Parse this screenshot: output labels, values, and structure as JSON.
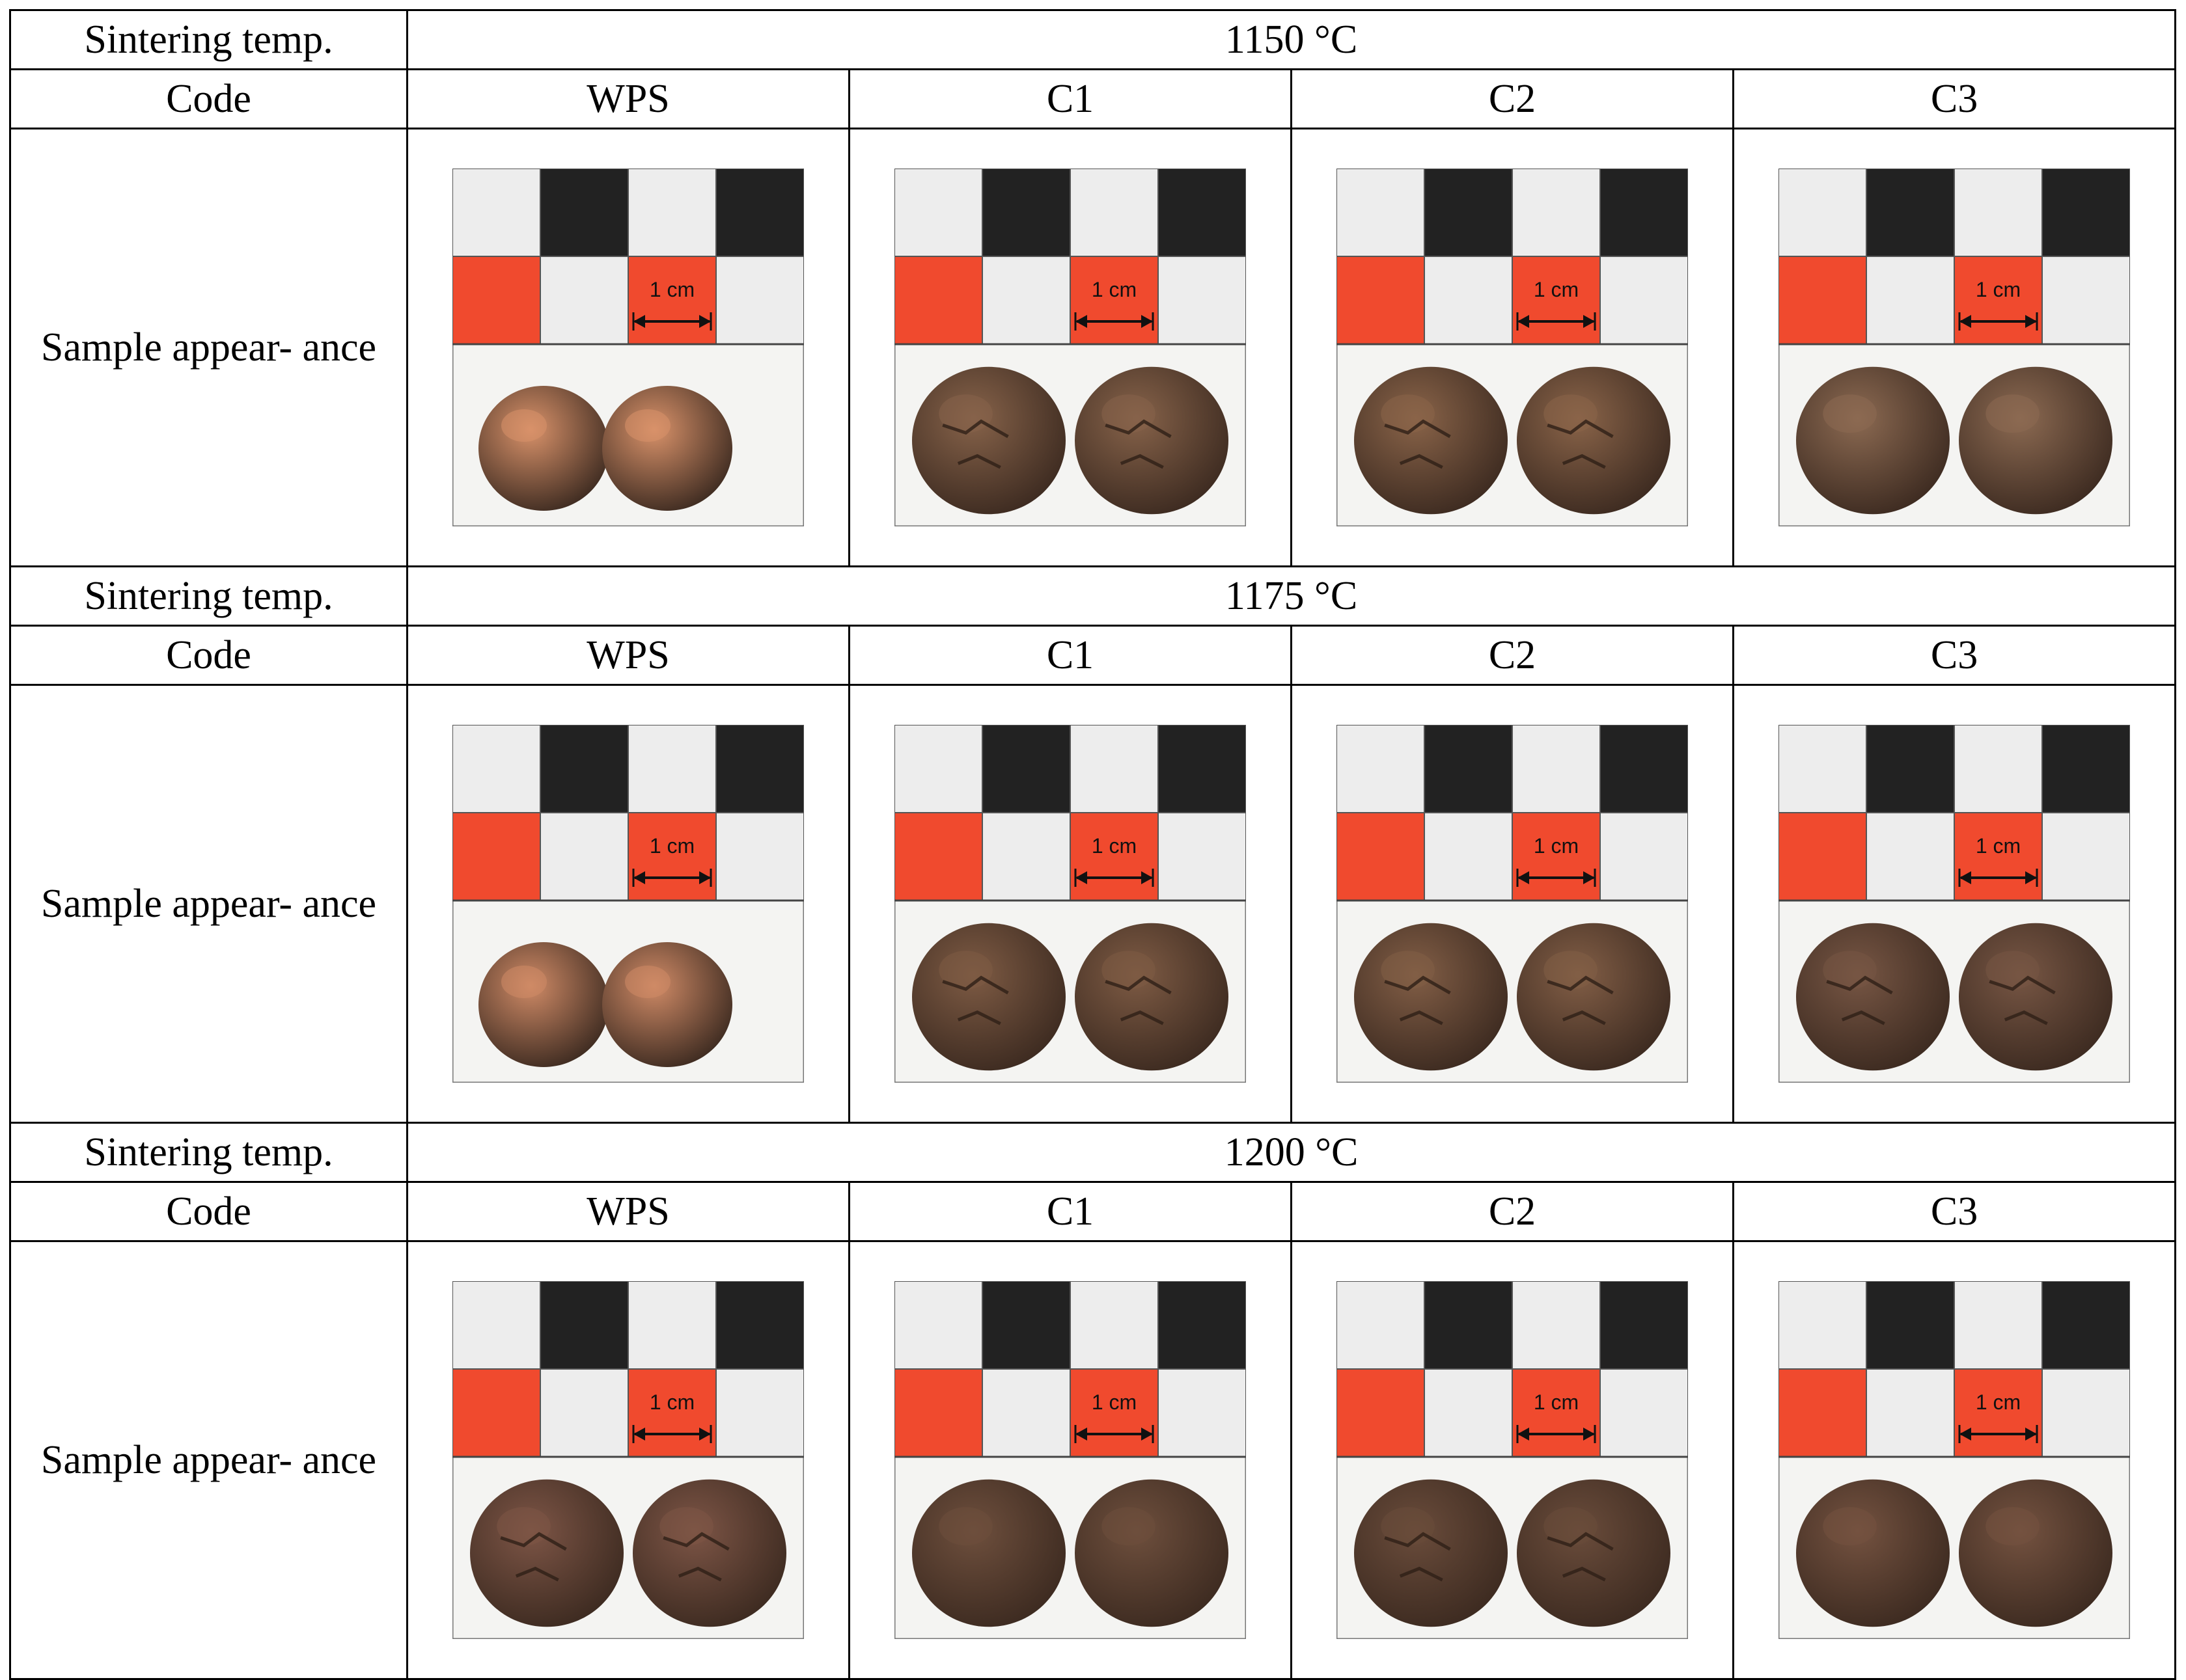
{
  "row_labels": {
    "sintering": "Sintering temp.",
    "code": "Code",
    "appearance": "Sample appear- ance"
  },
  "codes": [
    "WPS",
    "C1",
    "C2",
    "C3"
  ],
  "scale_label": "1 cm",
  "colors": {
    "scale_red": "#f04a2e",
    "scale_black": "#222222",
    "scale_white": "#ededed",
    "wps_1150": "#d9926a",
    "wps_1175": "#cf8a66",
    "wps_1200": "#7d5546",
    "clay_brown": "#87634a",
    "clay_dark": "#6e4f3d"
  },
  "sections": [
    {
      "temperature": "1150 °C",
      "samples": [
        {
          "code": "WPS",
          "color": "#d9926a",
          "texture": "smooth"
        },
        {
          "code": "C1",
          "color": "#87634a",
          "texture": "cracked"
        },
        {
          "code": "C2",
          "color": "#8a6449",
          "texture": "cracked"
        },
        {
          "code": "C3",
          "color": "#8c6a52",
          "texture": "smooth"
        }
      ]
    },
    {
      "temperature": "1175 °C",
      "samples": [
        {
          "code": "WPS",
          "color": "#cf8a66",
          "texture": "smooth"
        },
        {
          "code": "C1",
          "color": "#7e5b44",
          "texture": "cracked"
        },
        {
          "code": "C2",
          "color": "#825e46",
          "texture": "cracked"
        },
        {
          "code": "C3",
          "color": "#775644",
          "texture": "cracked"
        }
      ]
    },
    {
      "temperature": "1200 °C",
      "samples": [
        {
          "code": "WPS",
          "color": "#7d5546",
          "texture": "cracked"
        },
        {
          "code": "C1",
          "color": "#6e4f3d",
          "texture": "smooth"
        },
        {
          "code": "C2",
          "color": "#6a4c3b",
          "texture": "cracked"
        },
        {
          "code": "C3",
          "color": "#745240",
          "texture": "smooth"
        }
      ]
    }
  ]
}
